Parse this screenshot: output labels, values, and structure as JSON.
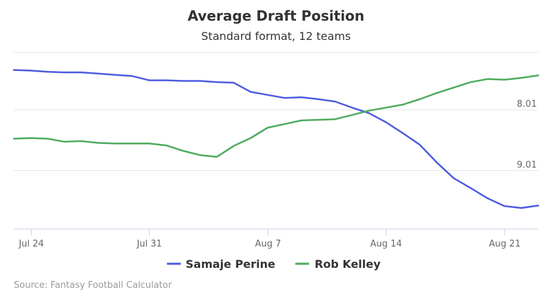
{
  "chart_data": {
    "type": "line",
    "title": "Average Draft Position",
    "subtitle": "Standard format, 12 teams",
    "x_tick_labels": [
      "Jul 24",
      "Jul 31",
      "Aug 7",
      "Aug 14",
      "Aug 21"
    ],
    "y_tick_labels": [
      "8.01",
      "9.01"
    ],
    "y_axis_reversed": true,
    "ylim": [
      7.07,
      9.97
    ],
    "grid": "horizontal",
    "legend_position": "bottom-center",
    "x": [
      "Jul 23",
      "Jul 24",
      "Jul 25",
      "Jul 26",
      "Jul 27",
      "Jul 28",
      "Jul 29",
      "Jul 30",
      "Jul 31",
      "Aug 1",
      "Aug 2",
      "Aug 3",
      "Aug 4",
      "Aug 5",
      "Aug 6",
      "Aug 7",
      "Aug 8",
      "Aug 9",
      "Aug 10",
      "Aug 11",
      "Aug 12",
      "Aug 13",
      "Aug 14",
      "Aug 15",
      "Aug 16",
      "Aug 17",
      "Aug 18",
      "Aug 19",
      "Aug 20",
      "Aug 21",
      "Aug 22",
      "Aug 23"
    ],
    "series": [
      {
        "name": "Samaje Perine",
        "color": "#4c5ce0",
        "values": [
          7.36,
          7.37,
          7.39,
          7.4,
          7.4,
          7.42,
          7.44,
          7.46,
          7.53,
          7.53,
          7.54,
          7.54,
          7.56,
          7.57,
          7.72,
          7.77,
          7.82,
          7.81,
          7.84,
          7.88,
          7.98,
          8.07,
          8.22,
          8.4,
          8.59,
          8.88,
          9.14,
          9.3,
          9.47,
          9.6,
          9.63,
          9.59
        ]
      },
      {
        "name": "Rob Kelley",
        "color": "#4daa5f",
        "values": [
          8.49,
          8.48,
          8.49,
          8.54,
          8.53,
          8.56,
          8.57,
          8.57,
          8.57,
          8.6,
          8.69,
          8.76,
          8.79,
          8.61,
          8.48,
          8.31,
          8.25,
          8.19,
          8.18,
          8.17,
          8.1,
          8.03,
          7.98,
          7.93,
          7.84,
          7.74,
          7.65,
          7.56,
          7.51,
          7.52,
          7.49,
          7.45
        ]
      }
    ],
    "credit": "Source: Fantasy Football Calculator"
  }
}
